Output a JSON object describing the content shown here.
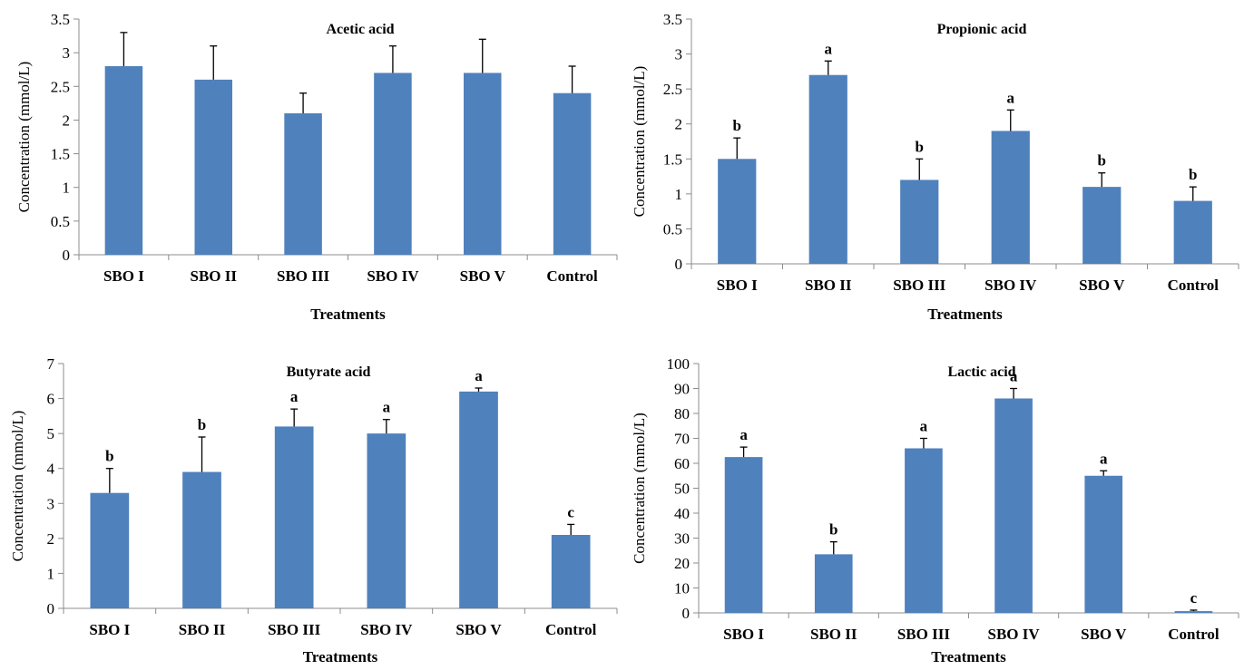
{
  "bar_color": "#4F81BD",
  "chart_data": [
    {
      "type": "bar",
      "title": "Acetic acid",
      "xlabel": "Treatments",
      "ylabel": "Concentration (mmol/L)",
      "ylim": [
        0,
        3.5
      ],
      "yticks": [
        "0",
        "0.5",
        "1",
        "1.5",
        "2",
        "2.5",
        "3",
        "3.5"
      ],
      "categories": [
        "SBO I",
        "SBO II",
        "SBO III",
        "SBO IV",
        "SBO V",
        "Control"
      ],
      "values": [
        2.8,
        2.6,
        2.1,
        2.7,
        2.7,
        2.4
      ],
      "errors": [
        0.5,
        0.5,
        0.3,
        0.4,
        0.5,
        0.4
      ],
      "letters": [
        "",
        "",
        "",
        "",
        "",
        ""
      ]
    },
    {
      "type": "bar",
      "title": "Propionic acid",
      "xlabel": "Treatments",
      "ylabel": "Concentration (mmol/L)",
      "ylim": [
        0,
        3.5
      ],
      "yticks": [
        "0",
        "0.5",
        "1",
        "1.5",
        "2",
        "2.5",
        "3",
        "3.5"
      ],
      "categories": [
        "SBO I",
        "SBO II",
        "SBO III",
        "SBO IV",
        "SBO V",
        "Control"
      ],
      "values": [
        1.5,
        2.7,
        1.2,
        1.9,
        1.1,
        0.9
      ],
      "errors": [
        0.3,
        0.2,
        0.3,
        0.3,
        0.2,
        0.2
      ],
      "letters": [
        "b",
        "a",
        "b",
        "a",
        "b",
        "b"
      ]
    },
    {
      "type": "bar",
      "title": "Butyrate acid",
      "xlabel": "Treatments",
      "ylabel": "Concentration (mmol/L)",
      "ylim": [
        0,
        7
      ],
      "yticks": [
        "0",
        "1",
        "2",
        "3",
        "4",
        "5",
        "6",
        "7"
      ],
      "categories": [
        "SBO I",
        "SBO II",
        "SBO III",
        "SBO IV",
        "SBO V",
        "Control"
      ],
      "values": [
        3.3,
        3.9,
        5.2,
        5.0,
        6.2,
        2.1
      ],
      "errors": [
        0.7,
        1.0,
        0.5,
        0.4,
        0.1,
        0.3
      ],
      "letters": [
        "b",
        "b",
        "a",
        "a",
        "a",
        "c"
      ]
    },
    {
      "type": "bar",
      "title": "Lactic acid",
      "xlabel": "Treatments",
      "ylabel": "Concentration (mmol/L)",
      "ylim": [
        0,
        100
      ],
      "yticks": [
        "0",
        "10",
        "20",
        "30",
        "40",
        "50",
        "60",
        "70",
        "80",
        "90",
        "100"
      ],
      "categories": [
        "SBO I",
        "SBO II",
        "SBO III",
        "SBO IV",
        "SBO V",
        "Control"
      ],
      "values": [
        62.5,
        23.5,
        66,
        86,
        55,
        0.7
      ],
      "errors": [
        4,
        5,
        4,
        4,
        2,
        0.4
      ],
      "letters": [
        "a",
        "b",
        "a",
        "a",
        "a",
        "c"
      ]
    }
  ]
}
